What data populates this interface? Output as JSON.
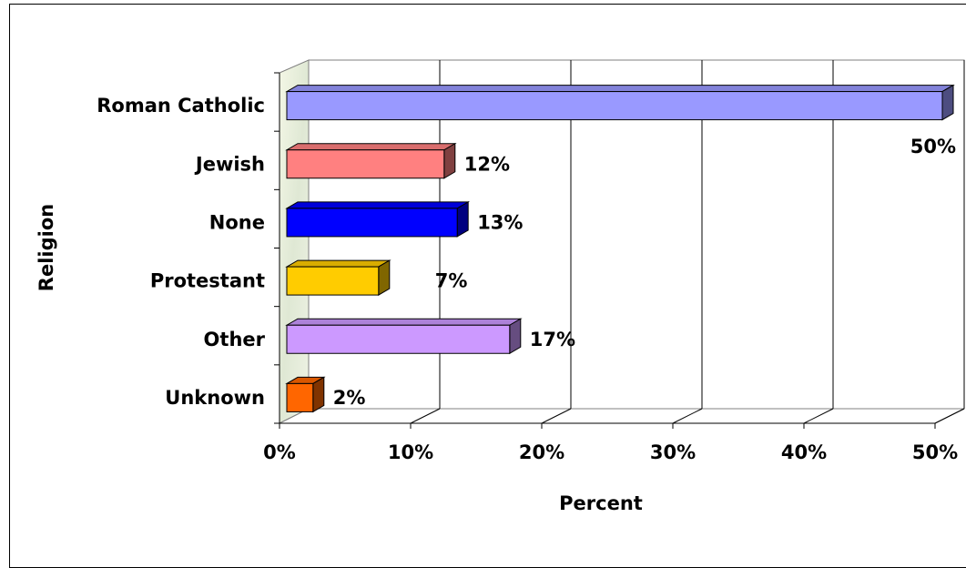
{
  "chart_data": {
    "type": "bar",
    "orientation": "horizontal",
    "style": "3d",
    "categories": [
      "Roman Catholic",
      "Jewish",
      "None",
      "Protestant",
      "Other",
      "Unknown"
    ],
    "values": [
      50,
      12,
      13,
      7,
      17,
      2
    ],
    "data_labels": [
      "50%",
      "12%",
      "13%",
      "7%",
      "17%",
      "2%"
    ],
    "bar_colors": [
      "#9999ff",
      "#ff8080",
      "#0000ff",
      "#ffcc00",
      "#cc99ff",
      "#ff6600"
    ],
    "xlabel": "Percent",
    "ylabel": "Religion",
    "xlim": [
      0,
      50
    ],
    "x_ticks": [
      0,
      10,
      20,
      30,
      40,
      50
    ],
    "x_tick_labels": [
      "0%",
      "10%",
      "20%",
      "30%",
      "40%",
      "50%"
    ],
    "grid": true,
    "legend": "none"
  }
}
